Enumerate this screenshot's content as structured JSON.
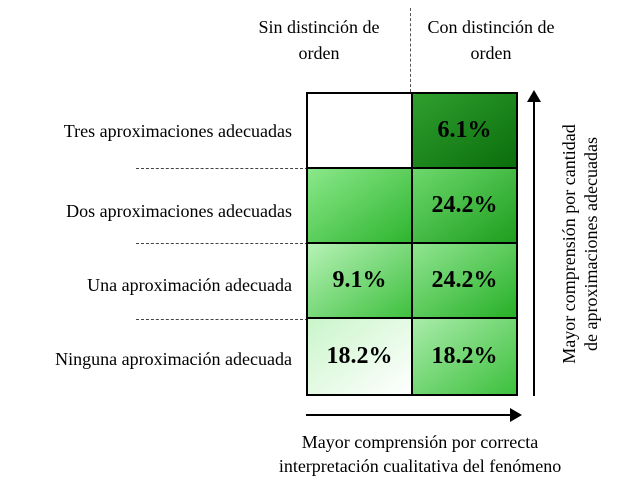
{
  "columns": {
    "left_header": [
      "Sin distinción de",
      "orden"
    ],
    "right_header": [
      "Con distinción de",
      "orden"
    ]
  },
  "rows": [
    {
      "label": "Tres aproximaciones adecuadas",
      "cells": [
        "",
        "6.1%"
      ],
      "fills": [
        "white",
        "dark"
      ]
    },
    {
      "label": "Dos aproximaciones adecuadas",
      "cells": [
        "",
        "24.2%"
      ],
      "fills": [
        "gradient",
        "gradient"
      ]
    },
    {
      "label": "Una aproximación adecuada",
      "cells": [
        "9.1%",
        "24.2%"
      ],
      "fills": [
        "gradient",
        "gradient"
      ]
    },
    {
      "label": "Ninguna aproximación adecuada",
      "cells": [
        "18.2%",
        "18.2%"
      ],
      "fills": [
        "gradient-light",
        "gradient"
      ]
    }
  ],
  "colors": {
    "dark_green": "#0b7a0b",
    "mid_green": "#22aa22",
    "light_green": "#7de37d",
    "pale_green": "#e9fbe9"
  },
  "captions": {
    "horizontal": [
      "Mayor comprensión por correcta",
      "interpretación cualitativa  del fenómeno"
    ],
    "vertical": [
      "Mayor comprensión por cantidad",
      "de aproximaciones adecuadas"
    ]
  }
}
